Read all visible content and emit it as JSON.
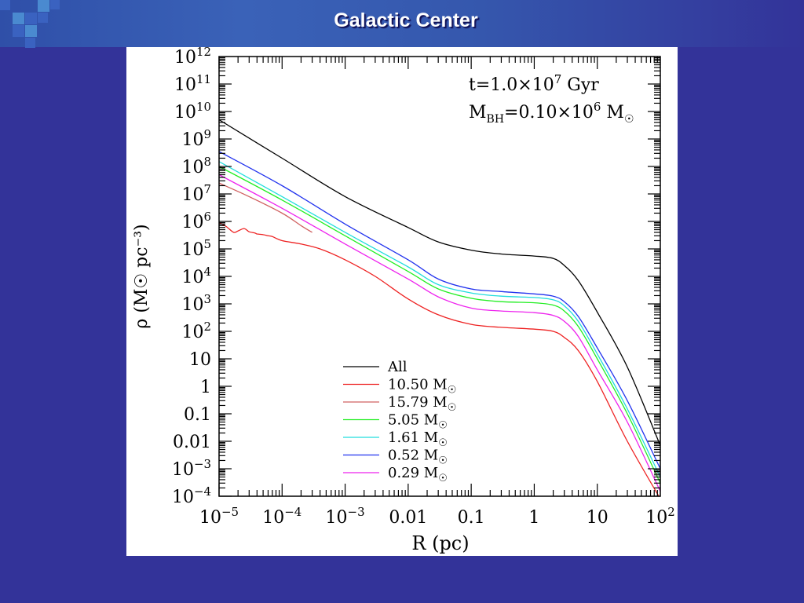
{
  "slide": {
    "title": "Galactic Center"
  },
  "colors": {
    "background": "#333399",
    "title_bar": "#3a62b8",
    "deco_square": "#4a8ad0"
  },
  "chart_data": {
    "type": "line",
    "title": "",
    "xlabel": "R (pc)",
    "ylabel": "ρ (M☉ pc⁻³)",
    "x_scale": "log",
    "y_scale": "log",
    "xlim": [
      1e-05,
      100
    ],
    "ylim": [
      0.0001,
      1000000000000
    ],
    "x_ticks": [
      {
        "value": 1e-05,
        "base": "10",
        "exp": "−5"
      },
      {
        "value": 0.0001,
        "base": "10",
        "exp": "−4"
      },
      {
        "value": 0.001,
        "base": "10",
        "exp": "−3"
      },
      {
        "value": 0.01,
        "base": "0.01",
        "exp": ""
      },
      {
        "value": 0.1,
        "base": "0.1",
        "exp": ""
      },
      {
        "value": 1,
        "base": "1",
        "exp": ""
      },
      {
        "value": 10,
        "base": "10",
        "exp": ""
      },
      {
        "value": 100,
        "base": "10",
        "exp": "2"
      }
    ],
    "y_ticks": [
      {
        "value": 1000000000000,
        "base": "10",
        "exp": "12"
      },
      {
        "value": 100000000000,
        "base": "10",
        "exp": "11"
      },
      {
        "value": 10000000000,
        "base": "10",
        "exp": "10"
      },
      {
        "value": 1000000000,
        "base": "10",
        "exp": "9"
      },
      {
        "value": 100000000,
        "base": "10",
        "exp": "8"
      },
      {
        "value": 10000000,
        "base": "10",
        "exp": "7"
      },
      {
        "value": 1000000,
        "base": "10",
        "exp": "6"
      },
      {
        "value": 100000,
        "base": "10",
        "exp": "5"
      },
      {
        "value": 10000,
        "base": "10",
        "exp": "4"
      },
      {
        "value": 1000,
        "base": "10",
        "exp": "3"
      },
      {
        "value": 100,
        "base": "10",
        "exp": "2"
      },
      {
        "value": 10,
        "base": "10",
        "exp": ""
      },
      {
        "value": 1,
        "base": "1",
        "exp": ""
      },
      {
        "value": 0.1,
        "base": "0.1",
        "exp": ""
      },
      {
        "value": 0.01,
        "base": "0.01",
        "exp": ""
      },
      {
        "value": 0.001,
        "base": "10",
        "exp": "−3"
      },
      {
        "value": 0.0001,
        "base": "10",
        "exp": "−4"
      }
    ],
    "annotations": {
      "time": {
        "prefix": "t=1.0×10",
        "exp": "7",
        "suffix": " Gyr"
      },
      "mass": {
        "prefix": "M",
        "sub": "BH",
        "mid": "=0.10×10",
        "exp": "6",
        "suffix": " M",
        "sym": "☉"
      }
    },
    "legend_position": "bottom-center",
    "series": [
      {
        "name": "All",
        "unit": "",
        "color": "#000000",
        "x": [
          1e-05,
          0.0001,
          0.001,
          0.01,
          0.03,
          0.1,
          0.3,
          1,
          2,
          3,
          5,
          10,
          30,
          100
        ],
        "y": [
          5000000000,
          200000000,
          8000000,
          600000,
          180000,
          90000,
          65000,
          55000,
          45000,
          25000,
          7000,
          500,
          5,
          0.007
        ]
      },
      {
        "name": "10.50",
        "unit": "M☉",
        "color": "#ee2222",
        "x": [
          1e-05,
          1.3e-05,
          1.7e-05,
          2e-05,
          2.5e-05,
          3e-05,
          3.7e-05,
          4e-05,
          5e-05,
          6e-05,
          7e-05,
          0.0001,
          0.0002,
          0.0004,
          0.001,
          0.003,
          0.01,
          0.03,
          0.1,
          0.3,
          1,
          2,
          3,
          5,
          10,
          30,
          100
        ],
        "y": [
          900000,
          650000,
          400000,
          450000,
          550000,
          420000,
          380000,
          350000,
          330000,
          300000,
          280000,
          200000,
          150000,
          100000,
          40000,
          10000,
          1500,
          400,
          180,
          140,
          120,
          100,
          60,
          20,
          1.5,
          0.01,
          8e-05
        ]
      },
      {
        "name": "15.79",
        "unit": "M☉",
        "color": "#d06060",
        "x": [
          1e-05,
          3e-05,
          0.0001,
          0.0002,
          0.0003
        ],
        "y": [
          25000000,
          8000000,
          2000000,
          700000,
          400000
        ]
      },
      {
        "name": "5.05",
        "unit": "M☉",
        "color": "#22ee22",
        "x": [
          1e-05,
          0.0001,
          0.001,
          0.01,
          0.03,
          0.1,
          0.3,
          1,
          2,
          3,
          5,
          10,
          30,
          100
        ],
        "y": [
          100000000,
          6000000,
          300000,
          15000,
          3500,
          1600,
          1200,
          1100,
          900,
          550,
          150,
          10,
          0.1,
          0.0003
        ]
      },
      {
        "name": "1.61",
        "unit": "M☉",
        "color": "#22dddd",
        "x": [
          1e-05,
          0.0001,
          0.001,
          0.01,
          0.03,
          0.1,
          0.3,
          1,
          2,
          3,
          5,
          10,
          30,
          100
        ],
        "y": [
          150000000,
          8000000,
          400000,
          22000,
          5000,
          2500,
          1900,
          1700,
          1400,
          850,
          230,
          15,
          0.15,
          0.0005
        ]
      },
      {
        "name": "0.52",
        "unit": "M☉",
        "color": "#2233ee",
        "x": [
          1e-05,
          0.0001,
          0.001,
          0.01,
          0.03,
          0.1,
          0.3,
          1,
          2,
          3,
          5,
          10,
          30,
          100
        ],
        "y": [
          350000000,
          20000000,
          800000,
          40000,
          8000,
          3500,
          2800,
          2300,
          1900,
          1200,
          350,
          25,
          0.3,
          0.001
        ]
      },
      {
        "name": "0.29",
        "unit": "M☉",
        "color": "#ee22ee",
        "x": [
          1e-05,
          0.0001,
          0.001,
          0.01,
          0.03,
          0.1,
          0.3,
          1,
          2,
          3,
          5,
          10,
          30,
          100
        ],
        "y": [
          50000000,
          3000000,
          150000,
          8000,
          1800,
          700,
          550,
          480,
          380,
          230,
          65,
          4,
          0.05,
          0.00015
        ]
      }
    ]
  }
}
